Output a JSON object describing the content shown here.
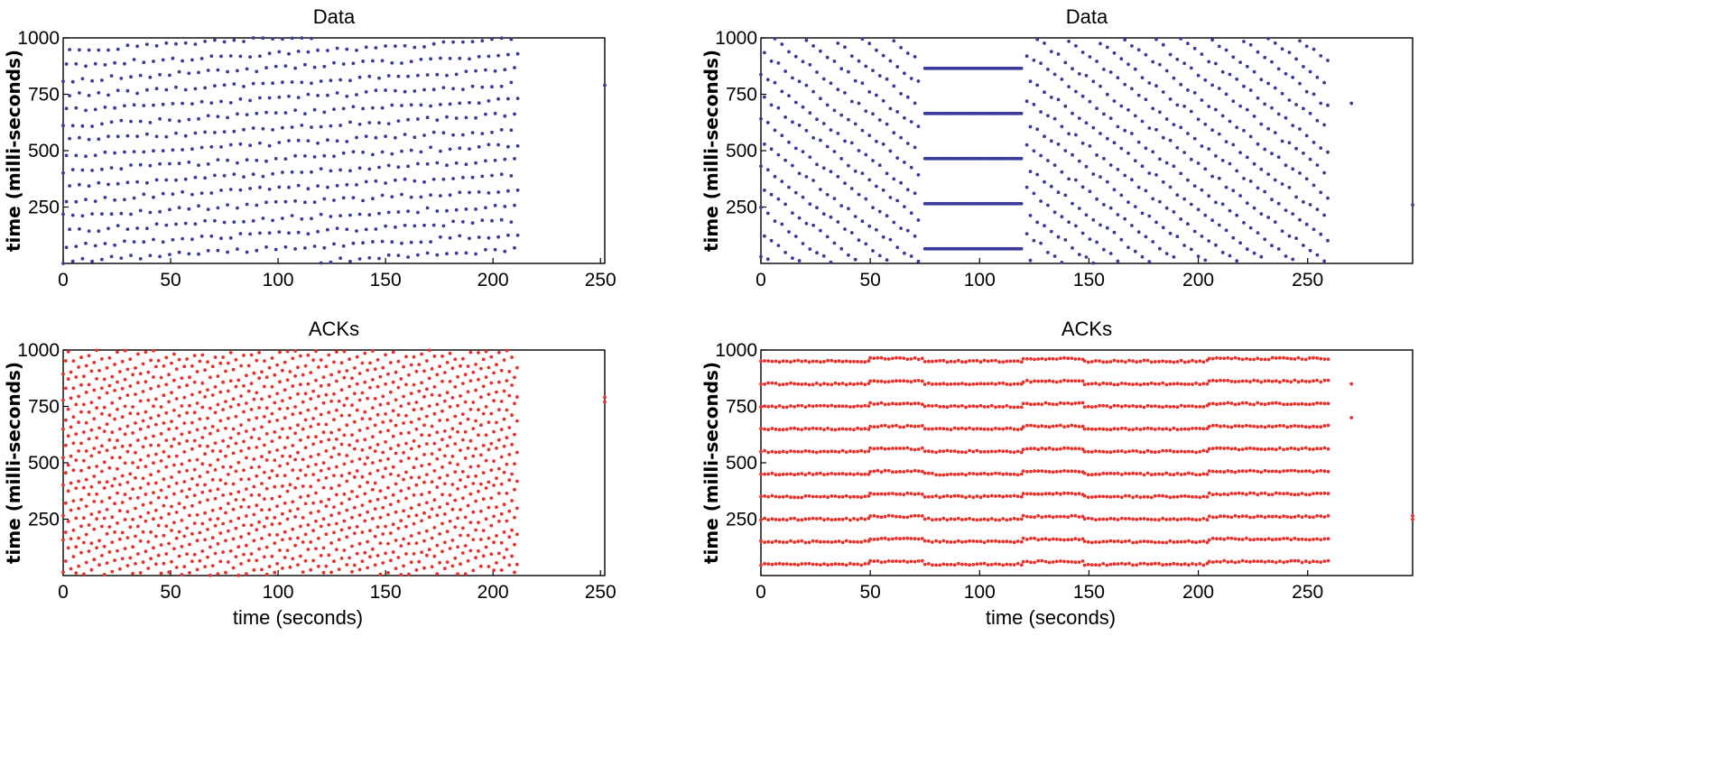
{
  "colors": {
    "data": "#3a3a9a",
    "acks": "#e8302a"
  },
  "chart_data": [
    {
      "id": "tl",
      "type": "scatter",
      "title": "Data",
      "color_key": "data",
      "xlabel": "",
      "ylabel": "time (milli-seconds)",
      "xlim": [
        0,
        252
      ],
      "ylim": [
        0,
        1000
      ],
      "xticks": [
        0,
        50,
        100,
        150,
        200,
        250
      ],
      "yticks": [
        250,
        500,
        750,
        1000
      ],
      "pattern": {
        "kind": "sawtooth",
        "x_end": 212,
        "x_step": 1.5,
        "strands": 5,
        "slope": 45,
        "offset": 0
      },
      "outliers": [
        [
          252,
          790
        ]
      ]
    },
    {
      "id": "tr",
      "type": "scatter",
      "title": "Data",
      "color_key": "data",
      "xlabel": "",
      "ylabel": "time (milli-seconds)",
      "xlim": [
        0,
        298
      ],
      "ylim": [
        0,
        1000
      ],
      "xticks": [
        0,
        50,
        100,
        150,
        200,
        250
      ],
      "yticks": [
        250,
        500,
        750,
        1000
      ],
      "pattern": {
        "kind": "sawtooth",
        "x_end": 260,
        "x_step": 1.6,
        "strands": 5,
        "slope": 55,
        "offset": 30,
        "gap": [
          72,
          120
        ],
        "bands": [
          65,
          265,
          465,
          665,
          865
        ],
        "band_range": [
          75,
          120
        ]
      },
      "outliers": [
        [
          270,
          710
        ],
        [
          298,
          260
        ]
      ]
    },
    {
      "id": "bl",
      "type": "scatter",
      "title": "ACKs",
      "color_key": "acks",
      "xlabel": "time (seconds)",
      "ylabel": "time (milli-seconds)",
      "xlim": [
        0,
        252
      ],
      "ylim": [
        0,
        1000
      ],
      "xticks": [
        0,
        50,
        100,
        150,
        200,
        250
      ],
      "yticks": [
        250,
        500,
        750,
        1000
      ],
      "pattern": {
        "kind": "sawtooth",
        "x_end": 212,
        "x_step": 1.2,
        "strands": 8,
        "slope": 38,
        "offset": 15
      },
      "outliers": [
        [
          252,
          790
        ],
        [
          252,
          770
        ]
      ]
    },
    {
      "id": "br",
      "type": "scatter",
      "title": "ACKs",
      "color_key": "acks",
      "xlabel": "time (seconds)",
      "ylabel": "time (milli-seconds)",
      "xlim": [
        0,
        298
      ],
      "ylim": [
        0,
        1000
      ],
      "xticks": [
        0,
        50,
        100,
        150,
        200,
        250
      ],
      "yticks": [
        250,
        500,
        750,
        1000
      ],
      "pattern": {
        "kind": "bands",
        "x_end": 260,
        "x_step": 1.7,
        "levels": [
          50,
          150,
          250,
          350,
          450,
          550,
          650,
          750,
          850,
          950
        ],
        "breaks": [
          0,
          50,
          75,
          120,
          148,
          205,
          260
        ],
        "shift": 12
      },
      "outliers": [
        [
          270,
          850
        ],
        [
          270,
          700
        ],
        [
          298,
          265
        ],
        [
          298,
          250
        ]
      ]
    }
  ]
}
